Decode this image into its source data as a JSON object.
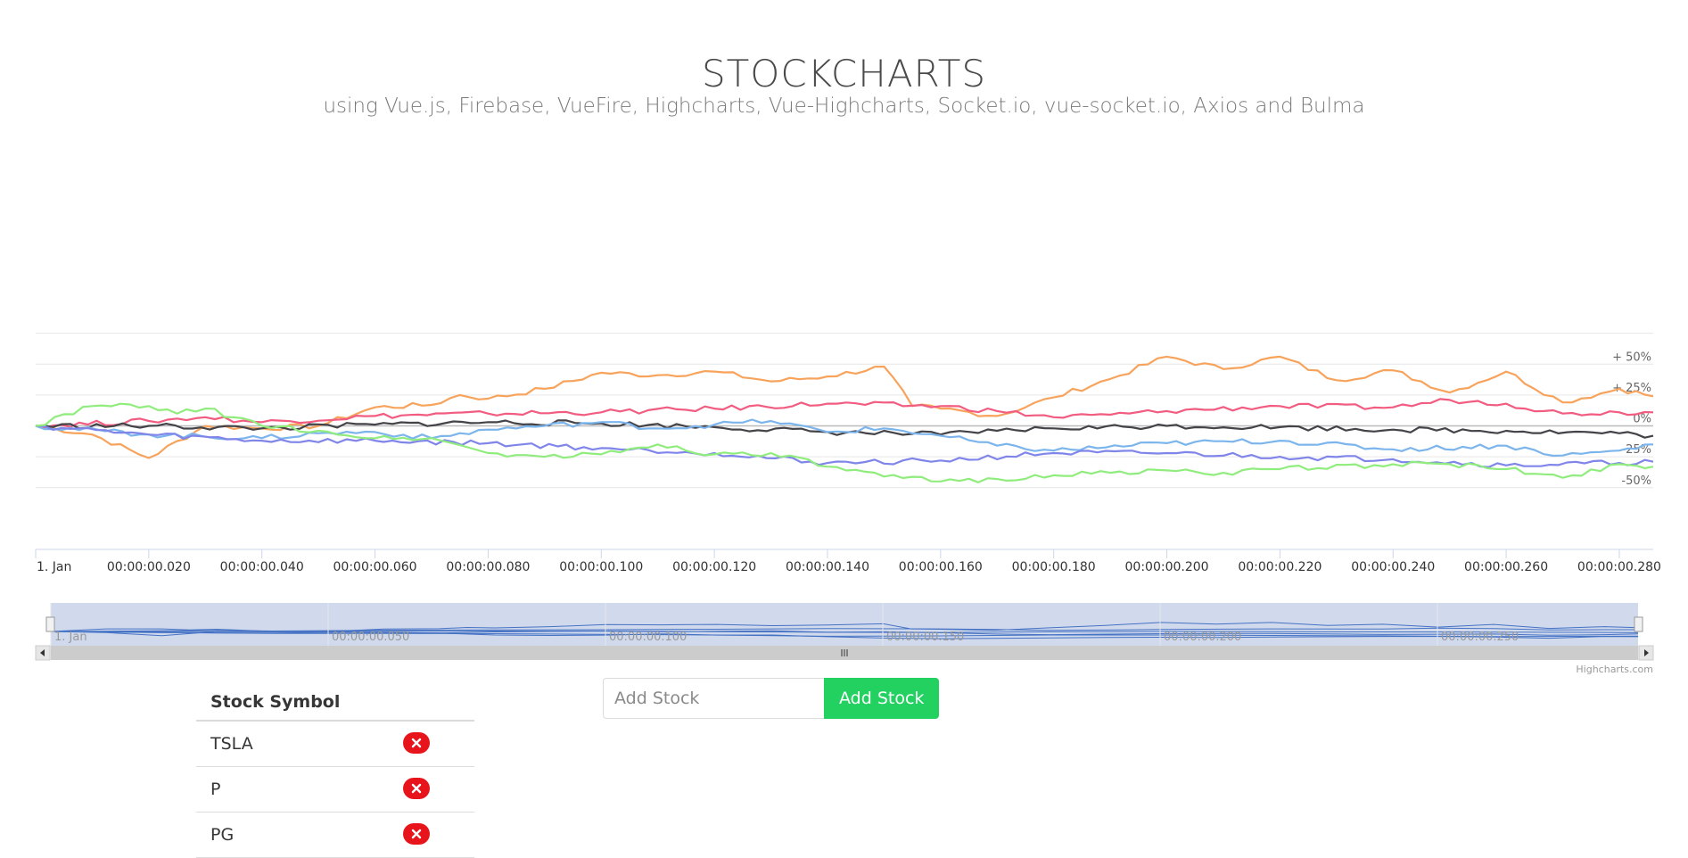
{
  "header": {
    "title": "STOCKCHARTS",
    "subtitle": "using Vue.js, Firebase, VueFire, Highcharts, Vue-Highcharts, Socket.io, vue-socket.io, Axios and Bulma"
  },
  "chart_data": {
    "type": "line",
    "y_unit": "%",
    "x_tick_labels": [
      "1. Jan",
      "00:00:00.020",
      "00:00:00.040",
      "00:00:00.060",
      "00:00:00.080",
      "00:00:00.100",
      "00:00:00.120",
      "00:00:00.140",
      "00:00:00.160",
      "00:00:00.180",
      "00:00:00.200",
      "00:00:00.220",
      "00:00:00.240",
      "00:00:00.260",
      "00:00:00.280"
    ],
    "x_tick_values": [
      0,
      0.02,
      0.04,
      0.06,
      0.08,
      0.1,
      0.12,
      0.14,
      0.16,
      0.18,
      0.2,
      0.22,
      0.24,
      0.26,
      0.28
    ],
    "y_tick_labels": [
      "+ 50%",
      "+ 25%",
      "0%",
      "-25%",
      "-50%"
    ],
    "y_tick_values": [
      50,
      25,
      0,
      -25,
      -50
    ],
    "xlim": [
      0,
      0.286
    ],
    "ylim": [
      -50,
      75
    ],
    "grid": true,
    "legend": "none",
    "navigator_labels": [
      "1. Jan",
      "00:00:00.050",
      "00:00:00.100",
      "00:00:00.150",
      "00:00:00.200",
      "00:00:00.250"
    ],
    "credits": "Highcharts.com",
    "series": [
      {
        "color": "#f7a35c",
        "x": [
          0,
          0.01,
          0.02,
          0.03,
          0.04,
          0.05,
          0.06,
          0.07,
          0.075,
          0.08,
          0.09,
          0.1,
          0.11,
          0.12,
          0.13,
          0.14,
          0.15,
          0.155,
          0.16,
          0.17,
          0.18,
          0.19,
          0.2,
          0.21,
          0.22,
          0.23,
          0.24,
          0.25,
          0.26,
          0.27,
          0.28,
          0.286
        ],
        "y": [
          0,
          -7,
          -26,
          0,
          -2,
          0,
          15,
          17,
          25,
          22,
          30,
          43,
          41,
          44,
          36,
          40,
          48,
          16,
          14,
          8,
          23,
          38,
          56,
          46,
          56,
          37,
          45,
          27,
          44,
          19,
          30,
          24
        ]
      },
      {
        "color": "#f15c80",
        "x": [
          0,
          0.02,
          0.03,
          0.04,
          0.06,
          0.08,
          0.1,
          0.12,
          0.14,
          0.16,
          0.17,
          0.18,
          0.19,
          0.2,
          0.22,
          0.24,
          0.25,
          0.26,
          0.27,
          0.28,
          0.286
        ],
        "y": [
          0,
          4,
          7,
          3,
          8,
          10,
          11,
          14,
          18,
          16,
          12,
          7,
          9,
          12,
          16,
          15,
          21,
          18,
          10,
          11,
          11
        ]
      },
      {
        "color": "#434348",
        "x": [
          0,
          0.02,
          0.04,
          0.06,
          0.08,
          0.1,
          0.12,
          0.14,
          0.16,
          0.17,
          0.18,
          0.2,
          0.22,
          0.24,
          0.26,
          0.28,
          0.286
        ],
        "y": [
          0,
          0,
          -2,
          1,
          3,
          2,
          -1,
          -5,
          -7,
          -4,
          -2,
          0,
          -1,
          -3,
          -4,
          -6,
          -8
        ]
      },
      {
        "color": "#7cb5ec",
        "x": [
          0,
          0.02,
          0.04,
          0.05,
          0.06,
          0.07,
          0.08,
          0.09,
          0.1,
          0.11,
          0.12,
          0.13,
          0.14,
          0.15,
          0.16,
          0.17,
          0.18,
          0.2,
          0.22,
          0.24,
          0.26,
          0.27,
          0.28,
          0.286
        ],
        "y": [
          0,
          -7,
          -10,
          -6,
          -5,
          -10,
          -3,
          0,
          3,
          -2,
          1,
          4,
          -5,
          -2,
          -8,
          -16,
          -20,
          -14,
          -12,
          -19,
          -16,
          -24,
          -20,
          -15
        ]
      },
      {
        "color": "#8085e9",
        "x": [
          0,
          0.02,
          0.04,
          0.06,
          0.08,
          0.1,
          0.12,
          0.14,
          0.16,
          0.18,
          0.2,
          0.22,
          0.24,
          0.26,
          0.28,
          0.286
        ],
        "y": [
          0,
          -7,
          -12,
          -12,
          -14,
          -18,
          -22,
          -30,
          -28,
          -22,
          -22,
          -25,
          -27,
          -32,
          -30,
          -29
        ]
      },
      {
        "color": "#90ed7d",
        "x": [
          0,
          0.01,
          0.02,
          0.025,
          0.03,
          0.04,
          0.05,
          0.06,
          0.07,
          0.08,
          0.09,
          0.1,
          0.11,
          0.12,
          0.13,
          0.14,
          0.15,
          0.16,
          0.17,
          0.18,
          0.19,
          0.2,
          0.21,
          0.22,
          0.24,
          0.25,
          0.26,
          0.27,
          0.28,
          0.286
        ],
        "y": [
          0,
          16,
          16,
          10,
          14,
          0,
          -4,
          -10,
          -10,
          -22,
          -25,
          -23,
          -15,
          -23,
          -22,
          -33,
          -41,
          -45,
          -43,
          -40,
          -38,
          -36,
          -38,
          -35,
          -31,
          -31,
          -35,
          -42,
          -31,
          -33
        ]
      }
    ]
  },
  "table": {
    "header": "Stock Symbol",
    "rows": [
      "TSLA",
      "P",
      "PG"
    ]
  },
  "form": {
    "placeholder": "Add Stock",
    "button_label": "Add Stock"
  },
  "icons": {
    "delete": "close-icon",
    "navigator_scroll_left": "arrow-left-icon",
    "navigator_scroll_right": "arrow-right-icon",
    "scrollbar_grip": "grip-icon"
  },
  "colors": {
    "button_green": "#23d160",
    "delete_red": "#e8141c",
    "navigator_fill": "#6685c2"
  }
}
